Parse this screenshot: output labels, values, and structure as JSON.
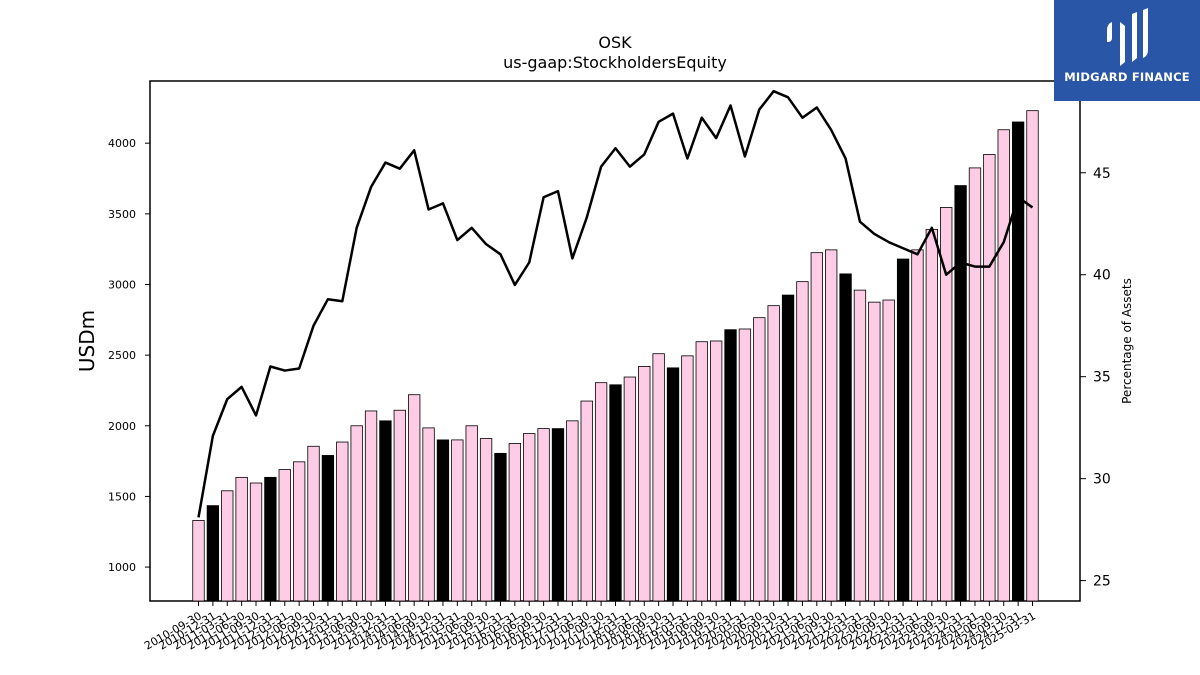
{
  "chart_data": {
    "type": "bar+line",
    "title": "OSK",
    "subtitle": "us-gaap:StockholdersEquity",
    "ylabel": "USDm",
    "y2label": "Percentage of Assets",
    "ylim": [
      760,
      4440
    ],
    "y2lim": [
      24,
      49.5
    ],
    "yticks": [
      1000,
      1500,
      2000,
      2500,
      3000,
      3500,
      4000
    ],
    "y2ticks": [
      25,
      30,
      35,
      40,
      45
    ],
    "grid": false,
    "legend": "none",
    "colors": {
      "bar_default": "#ffcce6",
      "bar_highlight": "#000000",
      "bar_edge": "#000000",
      "line": "#000000"
    },
    "categories": [
      "2010-09-30",
      "2010-12-31",
      "2011-03-31",
      "2011-06-30",
      "2011-09-30",
      "2011-12-31",
      "2012-03-31",
      "2012-06-30",
      "2012-09-30",
      "2012-12-31",
      "2013-03-31",
      "2013-06-30",
      "2013-09-30",
      "2013-12-31",
      "2014-03-31",
      "2014-06-30",
      "2014-09-30",
      "2014-12-31",
      "2015-03-31",
      "2015-06-30",
      "2015-09-30",
      "2015-12-31",
      "2016-03-31",
      "2016-06-30",
      "2016-09-30",
      "2016-12-31",
      "2017-03-31",
      "2017-06-30",
      "2017-09-30",
      "2017-12-31",
      "2018-03-31",
      "2018-06-30",
      "2018-09-30",
      "2018-12-31",
      "2019-03-31",
      "2019-06-30",
      "2019-09-30",
      "2019-12-31",
      "2020-03-31",
      "2020-06-30",
      "2020-09-30",
      "2020-12-31",
      "2021-03-31",
      "2021-06-30",
      "2021-09-30",
      "2021-12-31",
      "2022-03-31",
      "2022-06-30",
      "2022-09-30",
      "2022-12-31",
      "2023-03-31",
      "2023-06-30",
      "2023-09-30",
      "2023-12-31",
      "2024-03-31",
      "2024-06-30",
      "2024-09-30",
      "2024-12-31",
      "2025-03-31"
    ],
    "series": [
      {
        "type": "bar",
        "values": [
          1330,
          1435,
          1540,
          1635,
          1595,
          1635,
          1690,
          1745,
          1855,
          1790,
          1885,
          2000,
          2105,
          2035,
          2110,
          2220,
          1985,
          1900,
          1900,
          2000,
          1910,
          1805,
          1875,
          1945,
          1980,
          1980,
          2035,
          2175,
          2305,
          2290,
          2345,
          2420,
          2510,
          2410,
          2495,
          2595,
          2600,
          2680,
          2685,
          2765,
          2850,
          2925,
          3020,
          3225,
          3245,
          3075,
          2960,
          2875,
          2890,
          3180,
          3245,
          3390,
          3545,
          3700,
          3825,
          3920,
          4095,
          4150,
          4230
        ],
        "highlight": [
          false,
          true,
          false,
          false,
          false,
          true,
          false,
          false,
          false,
          true,
          false,
          false,
          false,
          true,
          false,
          false,
          false,
          true,
          false,
          false,
          false,
          true,
          false,
          false,
          false,
          true,
          false,
          false,
          false,
          true,
          false,
          false,
          false,
          true,
          false,
          false,
          false,
          true,
          false,
          false,
          false,
          true,
          false,
          false,
          false,
          true,
          false,
          false,
          false,
          true,
          false,
          false,
          false,
          true,
          false,
          false,
          false,
          true,
          false
        ]
      },
      {
        "type": "line",
        "axis": "right",
        "values": [
          28.1,
          32.1,
          33.9,
          34.5,
          33.1,
          35.5,
          35.3,
          35.4,
          37.5,
          38.8,
          38.7,
          42.3,
          44.3,
          45.5,
          45.2,
          46.1,
          43.2,
          43.5,
          41.7,
          42.3,
          41.5,
          41.0,
          39.5,
          40.6,
          43.8,
          44.1,
          40.8,
          42.8,
          45.3,
          46.2,
          45.3,
          45.9,
          47.5,
          47.9,
          45.7,
          47.7,
          46.7,
          48.3,
          45.8,
          48.1,
          49.0,
          48.7,
          47.7,
          48.2,
          47.1,
          45.7,
          42.6,
          42.0,
          41.6,
          41.3,
          41.0,
          42.3,
          40.0,
          40.6,
          40.4,
          40.4,
          41.6,
          43.8,
          43.3
        ]
      }
    ]
  },
  "logo": {
    "text": "MIDGARD FINANCE",
    "icon": "midgard-bars-icon",
    "background": "#2a56a8"
  }
}
